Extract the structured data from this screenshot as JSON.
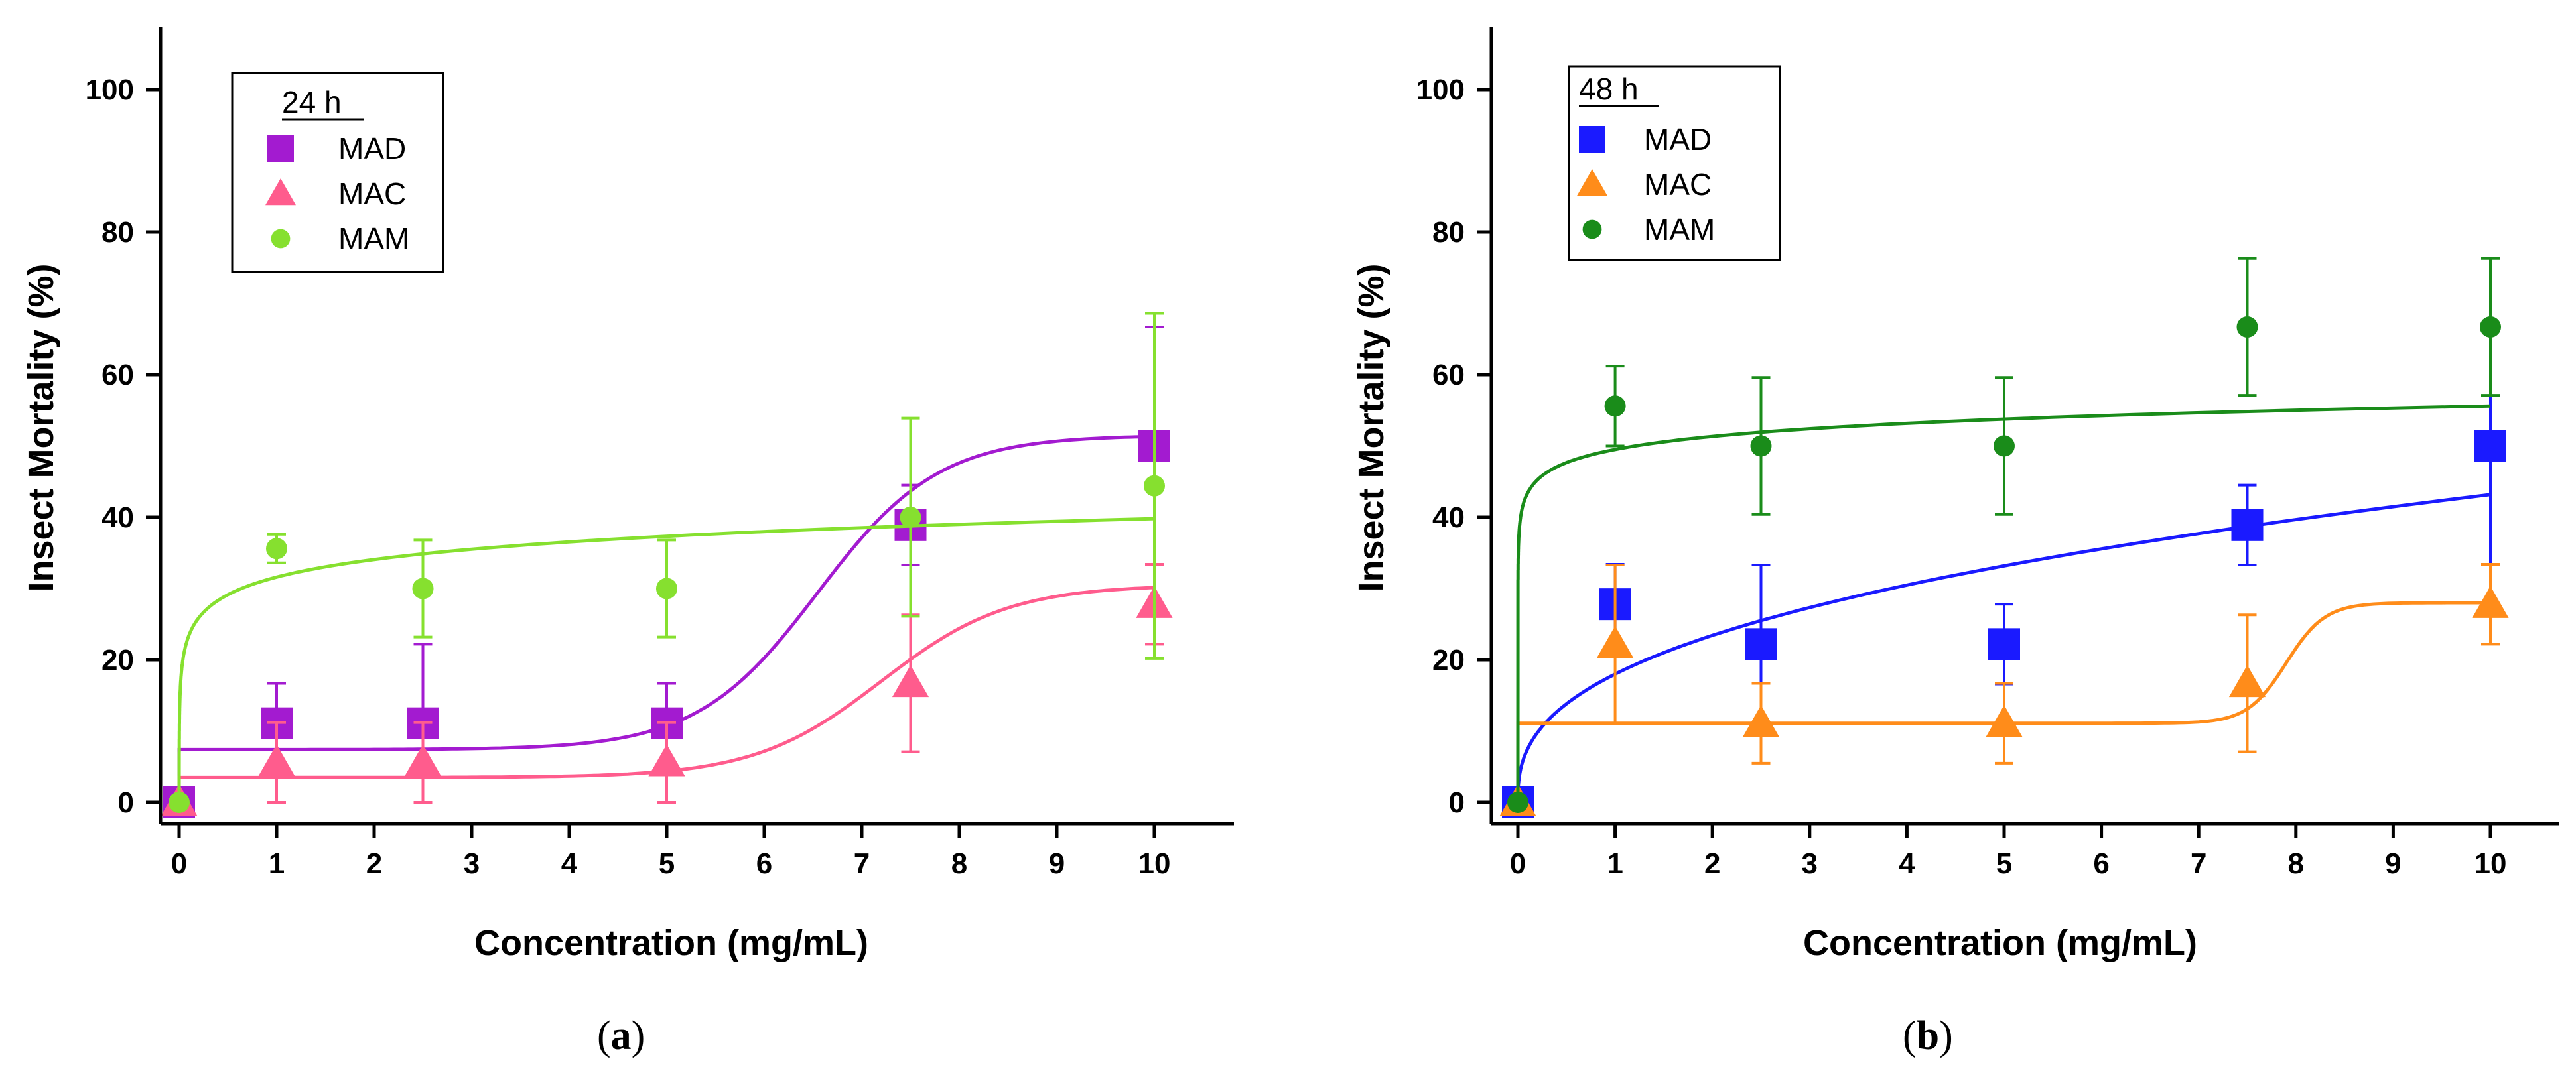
{
  "chart_data": [
    {
      "type": "scatter",
      "panel_label": "a",
      "legend_title": "24 h",
      "xlabel": "Concentration (mg/mL)",
      "ylabel": "Insect Mortality (%)",
      "xlim": [
        -0.3,
        10.8
      ],
      "ylim": [
        -3,
        110
      ],
      "xticks": [
        0,
        1,
        2,
        3,
        4,
        5,
        6,
        7,
        8,
        9,
        10
      ],
      "yticks": [
        0,
        20,
        40,
        60,
        80,
        100
      ],
      "x": [
        0,
        1,
        2.5,
        5,
        7.5,
        10
      ],
      "series": [
        {
          "name": "MAD",
          "marker": "square",
          "color": "#a31bd0",
          "values": [
            0,
            11.1,
            11.1,
            11.1,
            38.9,
            50.0
          ],
          "errors": [
            0,
            5.6,
            11.1,
            5.6,
            5.6,
            16.7
          ],
          "fit": "sigmoid",
          "fit_params": {
            "base": 7.4,
            "top": 51.5,
            "x50": 6.55,
            "k": 0.62
          }
        },
        {
          "name": "MAC",
          "marker": "triangle",
          "color": "#ff5c8d",
          "values": [
            0,
            5.6,
            5.6,
            5.6,
            16.7,
            27.8
          ],
          "errors": [
            0,
            5.6,
            5.6,
            5.6,
            9.6,
            5.6
          ],
          "fit": "sigmoid",
          "fit_params": {
            "base": 3.5,
            "top": 30.5,
            "x50": 7.2,
            "k": 0.65
          }
        },
        {
          "name": "MAM",
          "marker": "circle",
          "color": "#86e02f",
          "values": [
            0,
            35.6,
            30.0,
            30.0,
            40.0,
            44.4
          ],
          "errors": [
            0,
            2.0,
            6.8,
            6.8,
            13.9,
            24.2
          ],
          "fit": "log",
          "fit_params": {
            "a": 31.6,
            "b": 8.2
          }
        }
      ]
    },
    {
      "type": "scatter",
      "panel_label": "b",
      "legend_title": "48 h",
      "xlabel": "Concentration (mg/mL)",
      "ylabel": "Insect Mortality (%)",
      "xlim": [
        -0.3,
        10.8
      ],
      "ylim": [
        -3,
        110
      ],
      "xticks": [
        0,
        1,
        2,
        3,
        4,
        5,
        6,
        7,
        8,
        9,
        10
      ],
      "yticks": [
        0,
        20,
        40,
        60,
        80,
        100
      ],
      "x": [
        0,
        1,
        2.5,
        5,
        7.5,
        10
      ],
      "series": [
        {
          "name": "MAD",
          "marker": "square",
          "color": "#1a1aff",
          "values": [
            0,
            27.8,
            22.2,
            22.2,
            38.9,
            50.0
          ],
          "errors": [
            0,
            5.6,
            11.1,
            5.6,
            5.6,
            16.7
          ],
          "fit": "power",
          "fit_params": {
            "a": 18.0,
            "b": 0.38
          }
        },
        {
          "name": "MAC",
          "marker": "triangle",
          "color": "#ff8c1a",
          "values": [
            0,
            22.2,
            11.1,
            11.1,
            16.7,
            27.8
          ],
          "errors": [
            0,
            11.1,
            5.6,
            5.6,
            9.6,
            5.6
          ],
          "fit": "sigmoid",
          "fit_params": {
            "base": 11.1,
            "top": 28.0,
            "x50": 7.9,
            "k": 0.2
          }
        },
        {
          "name": "MAM",
          "marker": "circle",
          "color": "#1a8c1a",
          "values": [
            0,
            55.6,
            50.0,
            50.0,
            66.7,
            66.7
          ],
          "errors": [
            0,
            5.6,
            9.6,
            9.6,
            9.6,
            9.6
          ],
          "fit": "log",
          "fit_params": {
            "a": 49.5,
            "b": 6.1
          }
        }
      ]
    }
  ]
}
